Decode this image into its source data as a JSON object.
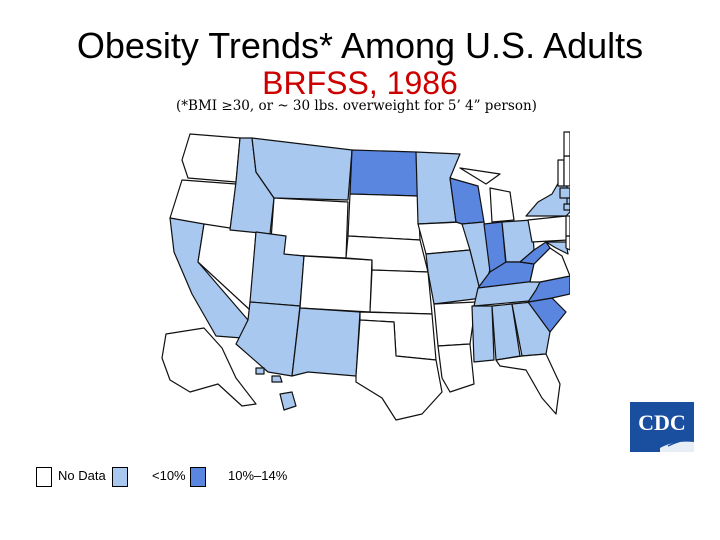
{
  "slide": {
    "title": "Obesity Trends* Among U.S. Adults",
    "subtitle": "BRFSS, 1986",
    "note": "(*BMI ≥30, or ~ 30 lbs. overweight for 5’ 4” person)"
  },
  "legend": [
    {
      "label": "No Data",
      "color": "#ffffff"
    },
    {
      "label": "<10%",
      "color": "#a8c8f0"
    },
    {
      "label": "10%–14%",
      "color": "#5b86e0"
    }
  ],
  "logo": {
    "text": "CDC"
  },
  "map": {
    "colors": {
      "no_data": "#ffffff",
      "lt10": "#a8c8f0",
      "10to14": "#5b86e0",
      "stroke": "#111111"
    },
    "states": {
      "WA": "no_data",
      "OR": "no_data",
      "CA": "lt10",
      "NV": "no_data",
      "ID": "lt10",
      "MT": "lt10",
      "WY": "no_data",
      "UT": "lt10",
      "AZ": "lt10",
      "CO": "no_data",
      "NM": "lt10",
      "ND": "10to14",
      "SD": "no_data",
      "NE": "no_data",
      "KS": "no_data",
      "OK": "no_data",
      "TX": "no_data",
      "MN": "lt10",
      "IA": "no_data",
      "MO": "lt10",
      "AR": "no_data",
      "LA": "no_data",
      "WI": "10to14",
      "IL": "lt10",
      "MI": "no_data",
      "IN": "10to14",
      "OH": "lt10",
      "KY": "10to14",
      "TN": "lt10",
      "MS": "lt10",
      "AL": "lt10",
      "GA": "lt10",
      "FL": "no_data",
      "SC": "10to14",
      "NC": "10to14",
      "VA": "no_data",
      "WV": "10to14",
      "MD": "lt10",
      "DE": "no_data",
      "PA": "no_data",
      "NY": "lt10",
      "NJ": "no_data",
      "CT": "lt10",
      "RI": "lt10",
      "MA": "lt10",
      "VT": "no_data",
      "NH": "no_data",
      "ME": "no_data",
      "AK": "no_data",
      "HI": "lt10"
    }
  }
}
